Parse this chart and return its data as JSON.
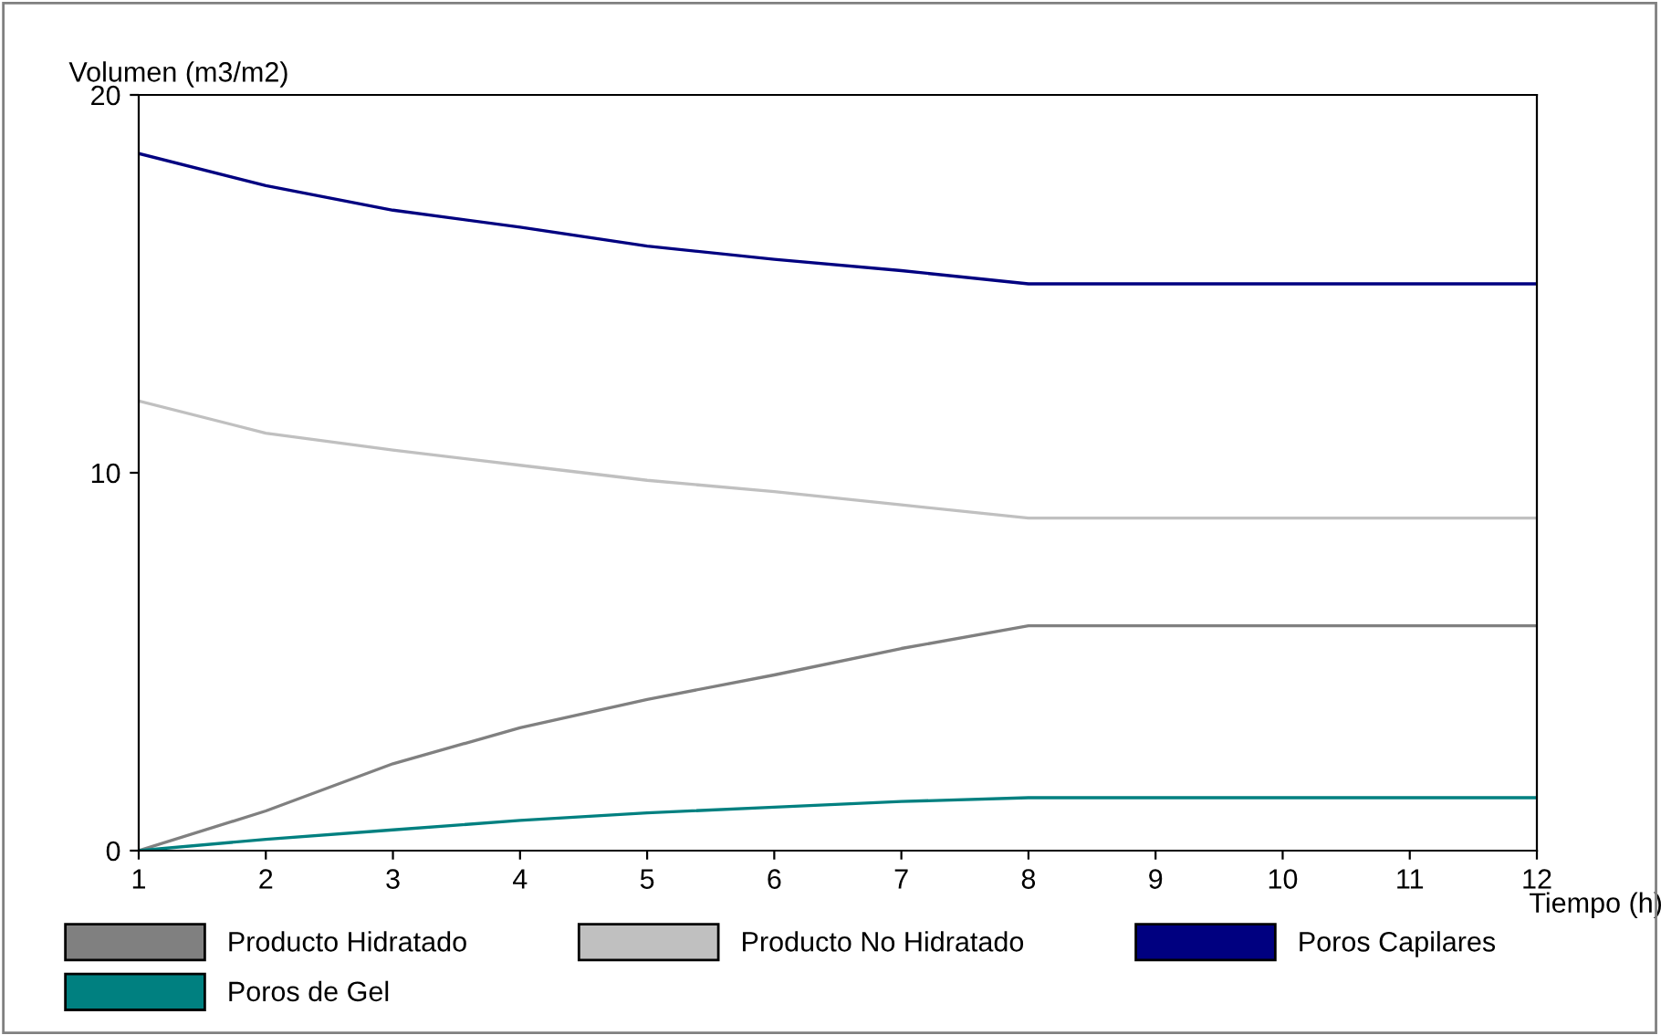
{
  "chart_data": {
    "type": "line",
    "xlabel": "Tiempo (h)",
    "ylabel": "Volumen (m3/m2)",
    "x": [
      1,
      2,
      3,
      4,
      5,
      6,
      7,
      8,
      9,
      10,
      11,
      12
    ],
    "series": [
      {
        "name": "Producto Hidratado",
        "color": "#808080",
        "values": [
          0,
          1.05,
          2.3,
          3.25,
          4.0,
          4.65,
          5.35,
          5.95,
          5.95,
          5.95,
          5.95,
          5.95
        ]
      },
      {
        "name": "Poros de Gel",
        "color": "#008080",
        "values": [
          0,
          0.3,
          0.55,
          0.8,
          1.0,
          1.15,
          1.3,
          1.4,
          1.4,
          1.4,
          1.4,
          1.4
        ]
      },
      {
        "name": "Producto No Hidratado",
        "color": "#c0c0c0",
        "values": [
          11.9,
          11.05,
          10.6,
          10.2,
          9.8,
          9.5,
          9.15,
          8.8,
          8.8,
          8.8,
          8.8,
          8.8
        ]
      },
      {
        "name": "Poros Capilares",
        "color": "#000080",
        "values": [
          18.45,
          17.6,
          16.95,
          16.5,
          16.0,
          15.65,
          15.35,
          15.0,
          15.0,
          15.0,
          15.0,
          15.0
        ]
      }
    ],
    "xlim": [
      1,
      12
    ],
    "xticks": [
      1,
      2,
      3,
      4,
      5,
      6,
      7,
      8,
      9,
      10,
      11,
      12
    ],
    "ylim": [
      0,
      20
    ],
    "yticks": [
      0,
      10,
      20
    ],
    "grid": false,
    "legend": "bottom",
    "marker": "none",
    "line_style": "solid"
  }
}
